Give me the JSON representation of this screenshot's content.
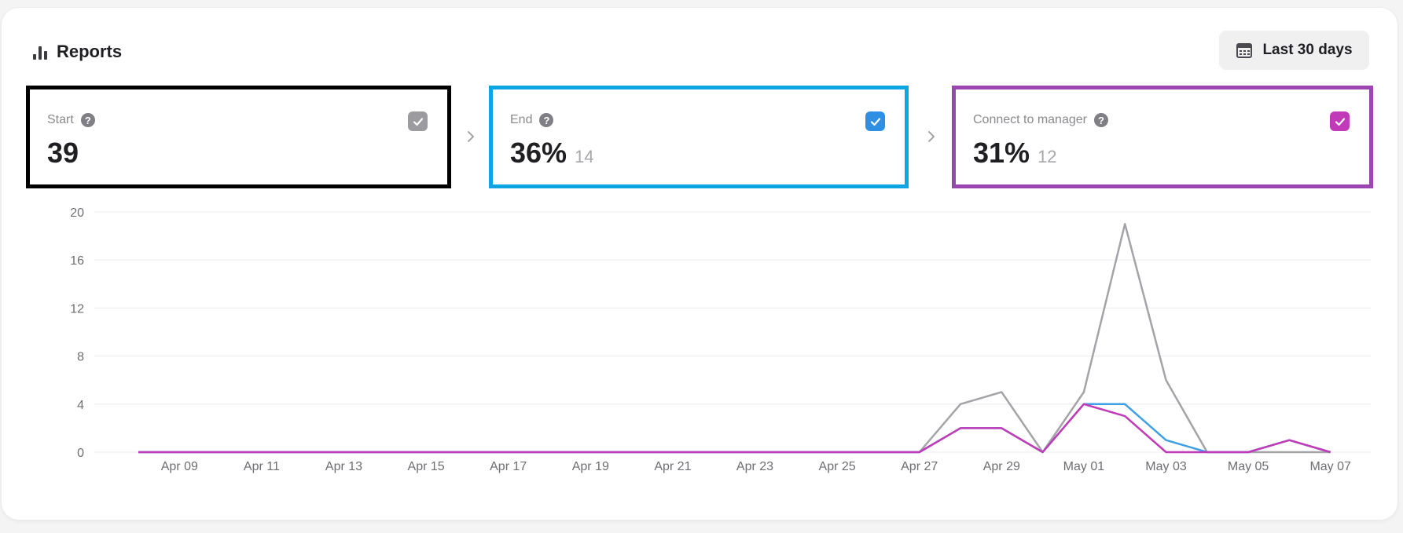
{
  "header": {
    "title": "Reports",
    "title_icon": "bar-chart-icon",
    "date_range_label": "Last 30 days",
    "date_range_icon": "calendar-icon"
  },
  "stats": [
    {
      "key": "start",
      "label": "Start",
      "value": "39",
      "sub": "",
      "color": "#8a8a8f",
      "checked": true,
      "highlight_border": "#000000"
    },
    {
      "key": "end",
      "label": "End",
      "value": "36%",
      "sub": "14",
      "color": "#2f8fe3",
      "checked": true,
      "highlight_border": "#0ea5e3"
    },
    {
      "key": "conn",
      "label": "Connect to manager",
      "value": "31%",
      "sub": "12",
      "color": "#c13bb8",
      "checked": true,
      "highlight_border": "#9b45b0"
    }
  ],
  "chart_data": {
    "type": "line",
    "x": [
      "Apr 08",
      "Apr 09",
      "Apr 10",
      "Apr 11",
      "Apr 12",
      "Apr 13",
      "Apr 14",
      "Apr 15",
      "Apr 16",
      "Apr 17",
      "Apr 18",
      "Apr 19",
      "Apr 20",
      "Apr 21",
      "Apr 22",
      "Apr 23",
      "Apr 24",
      "Apr 25",
      "Apr 26",
      "Apr 27",
      "Apr 28",
      "Apr 29",
      "Apr 30",
      "May 01",
      "May 02",
      "May 03",
      "May 04",
      "May 05",
      "May 06",
      "May 07"
    ],
    "x_tick_labels": [
      "Apr 09",
      "Apr 11",
      "Apr 13",
      "Apr 15",
      "Apr 17",
      "Apr 19",
      "Apr 21",
      "Apr 23",
      "Apr 25",
      "Apr 27",
      "Apr 29",
      "May 01",
      "May 03",
      "May 05",
      "May 07"
    ],
    "y_ticks": [
      0,
      4,
      8,
      12,
      16,
      20
    ],
    "ylim": [
      0,
      20
    ],
    "grid": true,
    "series": [
      {
        "key": "start",
        "color": "#a3a3a8",
        "values": [
          0,
          0,
          0,
          0,
          0,
          0,
          0,
          0,
          0,
          0,
          0,
          0,
          0,
          0,
          0,
          0,
          0,
          0,
          0,
          0,
          4,
          5,
          0,
          5,
          19,
          6,
          0,
          0,
          0,
          0
        ]
      },
      {
        "key": "end",
        "color": "#3fa0e6",
        "values": [
          0,
          0,
          0,
          0,
          0,
          0,
          0,
          0,
          0,
          0,
          0,
          0,
          0,
          0,
          0,
          0,
          0,
          0,
          0,
          0,
          2,
          2,
          0,
          4,
          4,
          1,
          0,
          0,
          1,
          0
        ]
      },
      {
        "key": "conn",
        "color": "#c13bb8",
        "values": [
          0,
          0,
          0,
          0,
          0,
          0,
          0,
          0,
          0,
          0,
          0,
          0,
          0,
          0,
          0,
          0,
          0,
          0,
          0,
          0,
          2,
          2,
          0,
          4,
          3,
          0,
          0,
          0,
          1,
          0
        ]
      }
    ]
  }
}
